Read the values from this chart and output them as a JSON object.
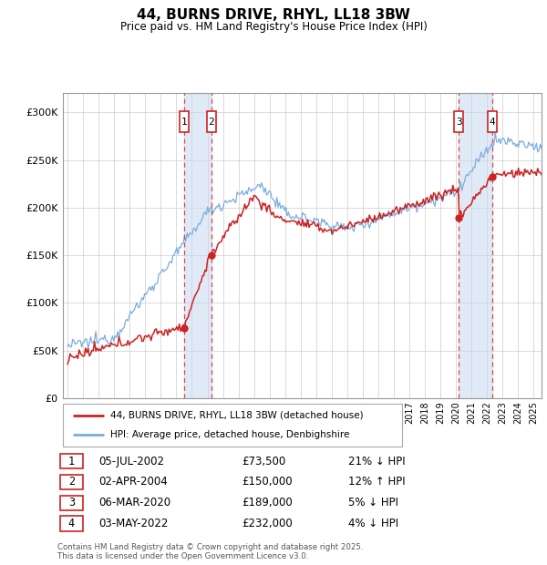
{
  "title": "44, BURNS DRIVE, RHYL, LL18 3BW",
  "subtitle": "Price paid vs. HM Land Registry's House Price Index (HPI)",
  "footer": "Contains HM Land Registry data © Crown copyright and database right 2025.\nThis data is licensed under the Open Government Licence v3.0.",
  "legend_line1": "44, BURNS DRIVE, RHYL, LL18 3BW (detached house)",
  "legend_line2": "HPI: Average price, detached house, Denbighshire",
  "transactions": [
    {
      "num": 1,
      "date": "05-JUL-2002",
      "price": "£73,500",
      "rel": "21% ↓ HPI",
      "year": 2002.5
    },
    {
      "num": 2,
      "date": "02-APR-2004",
      "price": "£150,000",
      "rel": "12% ↑ HPI",
      "year": 2004.25
    },
    {
      "num": 3,
      "date": "06-MAR-2020",
      "price": "£189,000",
      "rel": "5% ↓ HPI",
      "year": 2020.17
    },
    {
      "num": 4,
      "date": "03-MAY-2022",
      "price": "£232,000",
      "rel": "4% ↓ HPI",
      "year": 2022.33
    }
  ],
  "hpi_color": "#7aade0",
  "price_color": "#cc2222",
  "vline_color": "#dd4444",
  "shade_color": "#c8d8f0",
  "ylim": [
    0,
    320000
  ],
  "yticks": [
    0,
    50000,
    100000,
    150000,
    200000,
    250000,
    300000
  ],
  "xlim_start": 1994.7,
  "xlim_end": 2025.5
}
